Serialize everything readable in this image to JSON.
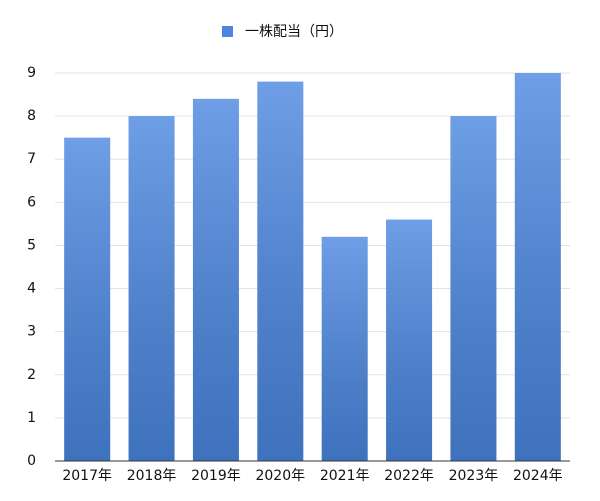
{
  "chart_data": {
    "type": "bar",
    "legend": "一株配当（円）",
    "categories": [
      "2017年",
      "2018年",
      "2019年",
      "2020年",
      "2021年",
      "2022年",
      "2023年",
      "2024年"
    ],
    "values": [
      7.5,
      8,
      8.4,
      8.8,
      5.2,
      5.6,
      8,
      9
    ],
    "color": "#4a86df",
    "ylim": [
      0,
      9
    ],
    "yticks": [
      0,
      1,
      2,
      3,
      4,
      5,
      6,
      7,
      8,
      9
    ],
    "grid": true
  }
}
